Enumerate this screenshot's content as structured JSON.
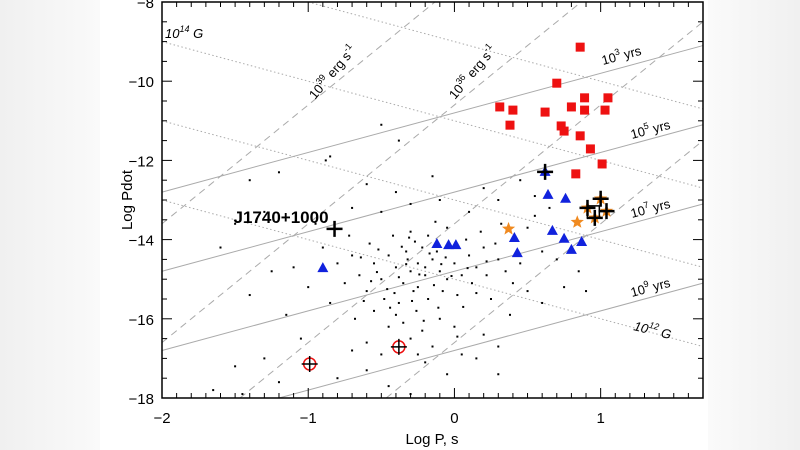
{
  "chart_data": {
    "type": "scatter",
    "xlabel": "Log P, s",
    "ylabel": "Log Pdot",
    "xlim": [
      -2,
      1.7
    ],
    "ylim": [
      -18,
      -8
    ],
    "xticks": [
      "-2",
      "-1",
      "0",
      "1"
    ],
    "yticks": [
      "-18",
      "-16",
      "-14",
      "-12",
      "-10",
      "-8"
    ],
    "grid": false,
    "colors": {
      "magnetar": "#ee1111",
      "triangle": "#1122dd",
      "star": "#f08a20",
      "pulsar": "#000000",
      "lines": "#999999"
    },
    "reference_lines": {
      "field": [
        {
          "logB": 15,
          "label": ""
        },
        {
          "logB": 14,
          "label_base": "10",
          "label_exp": "14",
          "label_unit": "G"
        },
        {
          "logB": 13,
          "label": ""
        },
        {
          "logB": 12,
          "label_base": "10",
          "label_exp": "12",
          "label_unit": "G"
        }
      ],
      "age": [
        {
          "logtau": 3,
          "label_base": "10",
          "label_exp": "3",
          "label_unit": "yrs"
        },
        {
          "logtau": 5,
          "label_base": "10",
          "label_exp": "5",
          "label_unit": "yrs"
        },
        {
          "logtau": 7,
          "label_base": "10",
          "label_exp": "7",
          "label_unit": "yrs"
        },
        {
          "logtau": 9,
          "label_base": "10",
          "label_exp": "9",
          "label_unit": "yrs"
        }
      ],
      "edot": [
        {
          "logE": 39,
          "label_base": "10",
          "label_exp": "39",
          "label_unit": "erg s",
          "label_unit_exp": "-1"
        },
        {
          "logE": 36,
          "label_base": "10",
          "label_exp": "36",
          "label_unit": "erg s",
          "label_unit_exp": "-1"
        },
        {
          "logE": 33
        },
        {
          "logE": 30
        }
      ]
    },
    "annotation": {
      "text": "J1740+1000",
      "x": -0.82,
      "y": -13.73
    },
    "series": [
      {
        "marker": "square",
        "color": "#ee1111",
        "points": [
          [
            0.86,
            -9.14
          ],
          [
            0.7,
            -10.05
          ],
          [
            0.31,
            -10.65
          ],
          [
            0.4,
            -10.73
          ],
          [
            0.62,
            -10.78
          ],
          [
            0.8,
            -10.65
          ],
          [
            0.89,
            -10.42
          ],
          [
            0.89,
            -10.73
          ],
          [
            1.03,
            -10.73
          ],
          [
            1.05,
            -10.42
          ],
          [
            0.38,
            -11.11
          ],
          [
            0.73,
            -11.13
          ],
          [
            0.75,
            -11.26
          ],
          [
            0.86,
            -11.38
          ],
          [
            0.93,
            -11.71
          ],
          [
            1.01,
            -12.09
          ],
          [
            0.83,
            -12.34
          ]
        ]
      },
      {
        "marker": "triangle",
        "color": "#1122dd",
        "points": [
          [
            0.62,
            -12.29
          ],
          [
            0.64,
            -12.87
          ],
          [
            0.76,
            -12.97
          ],
          [
            0.67,
            -13.78
          ],
          [
            0.75,
            -13.98
          ],
          [
            0.8,
            -14.26
          ],
          [
            0.87,
            -14.06
          ],
          [
            0.41,
            -13.96
          ],
          [
            0.43,
            -14.34
          ],
          [
            -0.04,
            -14.14
          ],
          [
            0.01,
            -14.14
          ],
          [
            -0.12,
            -14.11
          ],
          [
            -0.9,
            -14.72
          ]
        ]
      },
      {
        "marker": "star",
        "color": "#f08a20",
        "points": [
          [
            0.37,
            -13.73
          ],
          [
            0.84,
            -13.56
          ],
          [
            0.91,
            -13.2
          ],
          [
            1.0,
            -12.97
          ],
          [
            1.04,
            -13.28
          ],
          [
            0.96,
            -13.45
          ]
        ]
      },
      {
        "marker": "plus",
        "color": "#000000",
        "points": [
          [
            0.62,
            -12.29
          ],
          [
            1.0,
            -12.97
          ],
          [
            0.91,
            -13.2
          ],
          [
            1.04,
            -13.28
          ],
          [
            0.96,
            -13.45
          ],
          [
            -0.82,
            -13.73
          ]
        ]
      },
      {
        "marker": "open-square",
        "color": "#000000",
        "points": [
          [
            0.95,
            -13.3
          ]
        ]
      },
      {
        "marker": "circle-plus",
        "color": "#ee1111",
        "points": [
          [
            -0.99,
            -17.14
          ],
          [
            -0.38,
            -16.71
          ]
        ]
      },
      {
        "marker": "dot",
        "color": "#000000",
        "points": [
          [
            -0.3,
            -14.8
          ],
          [
            -0.25,
            -14.6
          ],
          [
            -0.2,
            -14.9
          ],
          [
            -0.35,
            -15.1
          ],
          [
            -0.15,
            -14.5
          ],
          [
            -0.4,
            -14.7
          ],
          [
            -0.28,
            -15.3
          ],
          [
            -0.1,
            -14.8
          ],
          [
            -0.05,
            -15.0
          ],
          [
            -0.45,
            -14.4
          ],
          [
            -0.5,
            -15.0
          ],
          [
            -0.33,
            -14.3
          ],
          [
            -0.22,
            -14.2
          ],
          [
            -0.12,
            -14.3
          ],
          [
            0.0,
            -14.6
          ],
          [
            0.05,
            -14.9
          ],
          [
            0.1,
            -14.4
          ],
          [
            0.15,
            -14.7
          ],
          [
            0.2,
            -14.2
          ],
          [
            -0.55,
            -14.6
          ],
          [
            -0.6,
            -15.3
          ],
          [
            -0.48,
            -15.5
          ],
          [
            -0.38,
            -15.6
          ],
          [
            -0.26,
            -15.8
          ],
          [
            -0.18,
            -15.5
          ],
          [
            -0.08,
            -15.3
          ],
          [
            0.02,
            -15.4
          ],
          [
            0.12,
            -15.1
          ],
          [
            0.22,
            -14.9
          ],
          [
            0.3,
            -14.5
          ],
          [
            -0.65,
            -14.9
          ],
          [
            -0.7,
            -14.4
          ],
          [
            -0.58,
            -14.1
          ],
          [
            -0.42,
            -13.9
          ],
          [
            -0.3,
            -13.8
          ],
          [
            -0.18,
            -13.9
          ],
          [
            -0.05,
            -13.7
          ],
          [
            0.08,
            -14.0
          ],
          [
            0.18,
            -13.8
          ],
          [
            0.28,
            -14.1
          ],
          [
            -0.35,
            -16.1
          ],
          [
            -0.22,
            -16.3
          ],
          [
            -0.1,
            -16.0
          ],
          [
            -0.45,
            -16.2
          ],
          [
            -0.55,
            -15.8
          ],
          [
            -0.3,
            -16.5
          ],
          [
            -0.15,
            -16.7
          ],
          [
            0.0,
            -16.2
          ],
          [
            -0.4,
            -15.9
          ],
          [
            -0.25,
            -15.2
          ],
          [
            -0.32,
            -14.5
          ],
          [
            -0.2,
            -14.7
          ],
          [
            -0.38,
            -14.95
          ],
          [
            -0.27,
            -14.05
          ],
          [
            -0.14,
            -15.15
          ],
          [
            -0.46,
            -15.25
          ],
          [
            -0.06,
            -14.45
          ],
          [
            0.06,
            -15.7
          ],
          [
            -0.52,
            -14.25
          ],
          [
            -0.62,
            -15.55
          ],
          [
            0.35,
            -14.8
          ],
          [
            0.4,
            -15.1
          ],
          [
            0.25,
            -15.5
          ],
          [
            0.32,
            -13.6
          ],
          [
            0.45,
            -14.6
          ],
          [
            0.5,
            -15.3
          ],
          [
            0.38,
            -15.9
          ],
          [
            -0.75,
            -15.1
          ],
          [
            -0.8,
            -14.6
          ],
          [
            -0.72,
            -13.9
          ],
          [
            -0.85,
            -15.6
          ],
          [
            -0.68,
            -16.0
          ],
          [
            -0.6,
            -16.6
          ],
          [
            -0.5,
            -16.9
          ],
          [
            -0.2,
            -17.1
          ],
          [
            0.05,
            -16.9
          ],
          [
            0.2,
            -16.4
          ],
          [
            -0.9,
            -14.2
          ],
          [
            -1.0,
            -15.2
          ],
          [
            -1.1,
            -14.7
          ],
          [
            -0.95,
            -13.6
          ],
          [
            -0.7,
            -13.2
          ],
          [
            -0.5,
            -13.3
          ],
          [
            -0.3,
            -13.1
          ],
          [
            -0.1,
            -13.0
          ],
          [
            0.1,
            -13.3
          ],
          [
            0.3,
            -13.0
          ],
          [
            0.5,
            -13.7
          ],
          [
            0.55,
            -12.9
          ],
          [
            0.45,
            -12.5
          ],
          [
            -0.6,
            -12.6
          ],
          [
            -0.4,
            -12.8
          ],
          [
            -0.15,
            -12.4
          ],
          [
            0.2,
            -12.7
          ],
          [
            -0.88,
            -12.0
          ],
          [
            -0.85,
            -11.9
          ],
          [
            -0.5,
            -11.1
          ],
          [
            -0.38,
            -11.5
          ],
          [
            -1.2,
            -12.3
          ],
          [
            -1.4,
            -12.5
          ],
          [
            -1.3,
            -13.3
          ],
          [
            -1.5,
            -13.6
          ],
          [
            -1.6,
            -14.2
          ],
          [
            -1.25,
            -14.8
          ],
          [
            -1.4,
            -15.4
          ],
          [
            -1.15,
            -15.9
          ],
          [
            -1.05,
            -16.5
          ],
          [
            -1.3,
            -17.0
          ],
          [
            -1.5,
            -17.2
          ],
          [
            -1.45,
            -17.9
          ],
          [
            -1.65,
            -17.8
          ],
          [
            -1.2,
            -17.6
          ],
          [
            -0.8,
            -17.5
          ],
          [
            -0.6,
            -17.3
          ],
          [
            -0.45,
            -17.7
          ],
          [
            -0.3,
            -17.9
          ],
          [
            0.3,
            -17.4
          ],
          [
            0.6,
            -15.6
          ],
          [
            0.75,
            -15.2
          ],
          [
            0.9,
            -15.3
          ],
          [
            0.85,
            -14.8
          ],
          [
            0.7,
            -14.5
          ],
          [
            0.6,
            -14.3
          ],
          [
            0.55,
            -13.4
          ],
          [
            0.65,
            -13.2
          ],
          [
            0.3,
            -16.7
          ],
          [
            0.15,
            -17.0
          ],
          [
            -0.05,
            -17.4
          ],
          [
            -0.25,
            -16.9
          ],
          [
            -0.7,
            -16.8
          ],
          [
            -0.33,
            -14.62
          ],
          [
            -0.24,
            -14.88
          ],
          [
            -0.17,
            -14.35
          ],
          [
            -0.41,
            -15.35
          ],
          [
            -0.09,
            -14.62
          ],
          [
            -0.29,
            -15.55
          ],
          [
            -0.36,
            -14.18
          ],
          [
            -0.02,
            -14.92
          ],
          [
            0.09,
            -14.72
          ],
          [
            -0.53,
            -14.82
          ],
          [
            -0.11,
            -15.72
          ],
          [
            -0.21,
            -16.05
          ],
          [
            -0.44,
            -15.72
          ],
          [
            0.15,
            -15.35
          ],
          [
            -0.57,
            -15.05
          ],
          [
            -0.31,
            -13.95
          ],
          [
            0.22,
            -14.55
          ],
          [
            -0.13,
            -13.55
          ],
          [
            -0.64,
            -14.45
          ],
          [
            0.02,
            -16.45
          ]
        ]
      }
    ]
  }
}
